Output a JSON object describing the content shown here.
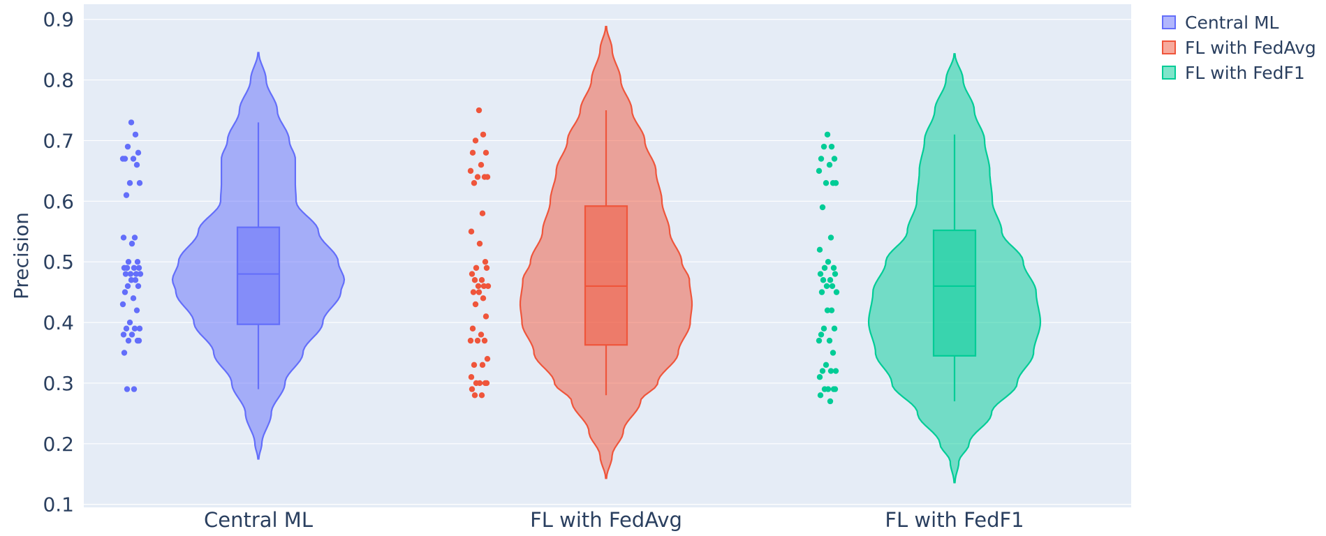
{
  "chart_data": {
    "type": "violin",
    "ylabel": "Precision",
    "xlabel": "",
    "ylim": [
      0.095,
      0.925
    ],
    "yticks": [
      0.1,
      0.2,
      0.3,
      0.4,
      0.5,
      0.6,
      0.7,
      0.8,
      0.9
    ],
    "ytick_labels": [
      "0.1",
      "0.2",
      "0.3",
      "0.4",
      "0.5",
      "0.6",
      "0.7",
      "0.8",
      "0.9"
    ],
    "categories": [
      "Central ML",
      "FL with FedAvg",
      "FL with FedF1"
    ],
    "grid": true,
    "legend_position": "top-right, outside plot",
    "background_color": "#e5ecf6",
    "series": [
      {
        "name": "Central ML",
        "color": "#636efa",
        "box": {
          "q1": 0.397,
          "median": 0.48,
          "q3": 0.557,
          "whisker_low": 0.29,
          "whisker_high": 0.73
        },
        "violin_range": [
          0.175,
          0.845
        ],
        "density": [
          [
            0.175,
            0.005
          ],
          [
            0.2,
            0.04
          ],
          [
            0.25,
            0.15
          ],
          [
            0.3,
            0.31
          ],
          [
            0.35,
            0.52
          ],
          [
            0.4,
            0.75
          ],
          [
            0.45,
            0.96
          ],
          [
            0.47,
            1.0
          ],
          [
            0.5,
            0.93
          ],
          [
            0.55,
            0.7
          ],
          [
            0.6,
            0.44
          ],
          [
            0.63,
            0.43
          ],
          [
            0.67,
            0.43
          ],
          [
            0.7,
            0.36
          ],
          [
            0.75,
            0.22
          ],
          [
            0.8,
            0.09
          ],
          [
            0.845,
            0.005
          ]
        ],
        "points": [
          0.73,
          0.71,
          0.69,
          0.68,
          0.67,
          0.67,
          0.67,
          0.66,
          0.63,
          0.63,
          0.61,
          0.54,
          0.54,
          0.53,
          0.5,
          0.5,
          0.49,
          0.49,
          0.49,
          0.49,
          0.48,
          0.48,
          0.48,
          0.48,
          0.47,
          0.47,
          0.46,
          0.46,
          0.45,
          0.44,
          0.43,
          0.42,
          0.4,
          0.39,
          0.39,
          0.39,
          0.38,
          0.38,
          0.37,
          0.37,
          0.37,
          0.35,
          0.29,
          0.29
        ]
      },
      {
        "name": "FL with FedAvg",
        "color": "#ef553b",
        "box": {
          "q1": 0.363,
          "median": 0.46,
          "q3": 0.592,
          "whisker_low": 0.28,
          "whisker_high": 0.75
        },
        "violin_range": [
          0.143,
          0.888
        ],
        "density": [
          [
            0.143,
            0.005
          ],
          [
            0.18,
            0.07
          ],
          [
            0.22,
            0.2
          ],
          [
            0.27,
            0.4
          ],
          [
            0.3,
            0.6
          ],
          [
            0.35,
            0.84
          ],
          [
            0.4,
            0.98
          ],
          [
            0.43,
            1.0
          ],
          [
            0.47,
            0.97
          ],
          [
            0.5,
            0.88
          ],
          [
            0.55,
            0.74
          ],
          [
            0.6,
            0.65
          ],
          [
            0.65,
            0.58
          ],
          [
            0.7,
            0.45
          ],
          [
            0.75,
            0.3
          ],
          [
            0.8,
            0.17
          ],
          [
            0.85,
            0.07
          ],
          [
            0.888,
            0.005
          ]
        ],
        "points": [
          0.75,
          0.71,
          0.7,
          0.68,
          0.68,
          0.66,
          0.65,
          0.64,
          0.64,
          0.64,
          0.63,
          0.58,
          0.55,
          0.53,
          0.5,
          0.49,
          0.49,
          0.48,
          0.47,
          0.47,
          0.46,
          0.46,
          0.46,
          0.45,
          0.45,
          0.44,
          0.43,
          0.41,
          0.39,
          0.38,
          0.37,
          0.37,
          0.37,
          0.34,
          0.33,
          0.33,
          0.31,
          0.3,
          0.3,
          0.3,
          0.3,
          0.29,
          0.28,
          0.28
        ]
      },
      {
        "name": "FL with FedF1",
        "color": "#00cc96",
        "box": {
          "q1": 0.345,
          "median": 0.46,
          "q3": 0.552,
          "whisker_low": 0.27,
          "whisker_high": 0.71
        },
        "violin_range": [
          0.136,
          0.843
        ],
        "density": [
          [
            0.136,
            0.005
          ],
          [
            0.17,
            0.05
          ],
          [
            0.2,
            0.17
          ],
          [
            0.25,
            0.43
          ],
          [
            0.3,
            0.73
          ],
          [
            0.35,
            0.92
          ],
          [
            0.4,
            1.0
          ],
          [
            0.45,
            0.95
          ],
          [
            0.5,
            0.8
          ],
          [
            0.55,
            0.55
          ],
          [
            0.6,
            0.44
          ],
          [
            0.65,
            0.41
          ],
          [
            0.7,
            0.35
          ],
          [
            0.75,
            0.23
          ],
          [
            0.8,
            0.1
          ],
          [
            0.843,
            0.005
          ]
        ],
        "points": [
          0.71,
          0.69,
          0.69,
          0.67,
          0.67,
          0.66,
          0.65,
          0.63,
          0.63,
          0.63,
          0.59,
          0.54,
          0.52,
          0.5,
          0.49,
          0.49,
          0.48,
          0.48,
          0.47,
          0.47,
          0.46,
          0.46,
          0.45,
          0.45,
          0.42,
          0.42,
          0.39,
          0.39,
          0.38,
          0.37,
          0.37,
          0.35,
          0.33,
          0.32,
          0.32,
          0.32,
          0.31,
          0.29,
          0.29,
          0.29,
          0.29,
          0.28,
          0.27
        ]
      }
    ]
  }
}
